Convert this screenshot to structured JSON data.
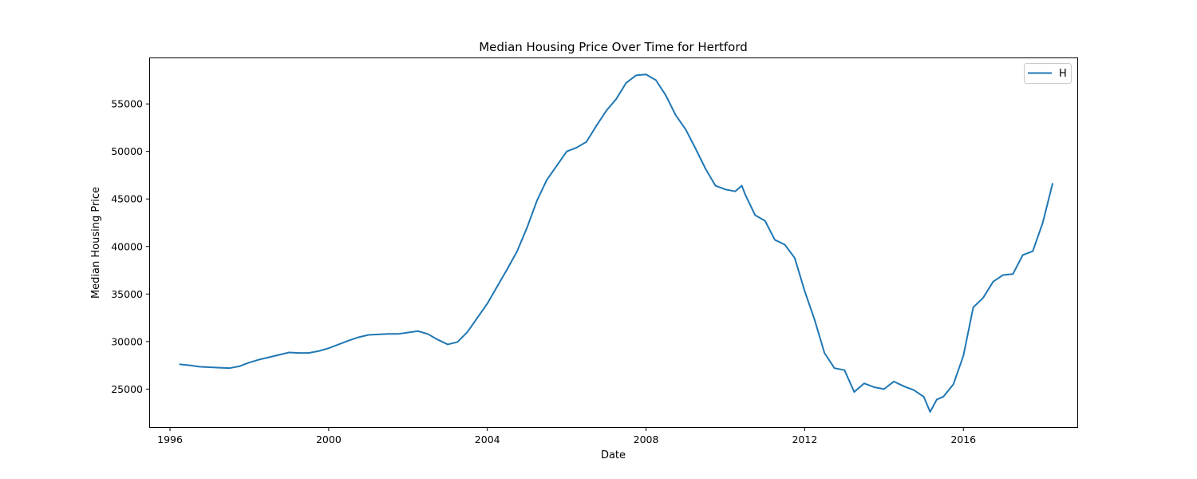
{
  "chart_data": {
    "type": "line",
    "title": "Median Housing Price Over Time for Hertford",
    "xlabel": "Date",
    "ylabel": "Median Housing Price",
    "xlim": [
      "1995-07-01",
      "2018-11-15"
    ],
    "ylim": [
      21000,
      59800
    ],
    "xticks": [
      {
        "label": "1996",
        "date": "1996-01-01"
      },
      {
        "label": "2000",
        "date": "2000-01-01"
      },
      {
        "label": "2004",
        "date": "2004-01-01"
      },
      {
        "label": "2008",
        "date": "2008-01-01"
      },
      {
        "label": "2012",
        "date": "2012-01-01"
      },
      {
        "label": "2016",
        "date": "2016-01-01"
      }
    ],
    "yticks": [
      25000,
      30000,
      35000,
      40000,
      45000,
      50000,
      55000
    ],
    "grid": false,
    "legend_position": "top-right",
    "series": [
      {
        "name": "H",
        "color": "#1f77b4",
        "x": [
          "1996-04-01",
          "1996-07-01",
          "1996-10-01",
          "1997-01-01",
          "1997-04-01",
          "1997-07-01",
          "1997-10-01",
          "1998-01-01",
          "1998-04-01",
          "1998-07-01",
          "1998-10-01",
          "1999-01-01",
          "1999-04-01",
          "1999-07-01",
          "1999-10-01",
          "2000-01-01",
          "2000-04-01",
          "2000-07-01",
          "2000-10-01",
          "2001-01-01",
          "2001-04-01",
          "2001-07-01",
          "2001-10-01",
          "2002-01-01",
          "2002-04-01",
          "2002-07-01",
          "2002-10-01",
          "2003-01-01",
          "2003-04-01",
          "2003-07-01",
          "2003-10-01",
          "2004-01-01",
          "2004-04-01",
          "2004-07-01",
          "2004-10-01",
          "2005-01-01",
          "2005-04-01",
          "2005-07-01",
          "2005-10-01",
          "2006-01-01",
          "2006-04-01",
          "2006-07-01",
          "2006-10-01",
          "2007-01-01",
          "2007-04-01",
          "2007-07-01",
          "2007-10-01",
          "2008-01-01",
          "2008-04-01",
          "2008-07-01",
          "2008-10-01",
          "2009-01-01",
          "2009-04-01",
          "2009-07-01",
          "2009-10-01",
          "2010-01-01",
          "2010-04-01",
          "2010-06-01",
          "2010-07-01",
          "2010-10-01",
          "2011-01-01",
          "2011-04-01",
          "2011-07-01",
          "2011-10-01",
          "2012-01-01",
          "2012-04-01",
          "2012-07-01",
          "2012-10-01",
          "2013-01-01",
          "2013-04-01",
          "2013-07-01",
          "2013-10-01",
          "2014-01-01",
          "2014-04-01",
          "2014-07-01",
          "2014-10-01",
          "2015-01-01",
          "2015-03-01",
          "2015-05-01",
          "2015-07-01",
          "2015-10-01",
          "2016-01-01",
          "2016-04-01",
          "2016-07-01",
          "2016-10-01",
          "2017-01-01",
          "2017-04-01",
          "2017-07-01",
          "2017-10-01",
          "2018-01-01",
          "2018-04-01"
        ],
        "y": [
          27600,
          27500,
          27350,
          27300,
          27250,
          27200,
          27400,
          27800,
          28100,
          28350,
          28600,
          28850,
          28800,
          28800,
          29000,
          29300,
          29700,
          30100,
          30450,
          30700,
          30750,
          30800,
          30800,
          30950,
          31100,
          30800,
          30200,
          29700,
          29950,
          31000,
          32500,
          34000,
          35800,
          37600,
          39500,
          42000,
          44800,
          47000,
          48500,
          50000,
          50400,
          51000,
          52700,
          54300,
          55500,
          57200,
          58000,
          58100,
          57500,
          55900,
          53800,
          52300,
          50300,
          48200,
          46400,
          46000,
          45800,
          46400,
          45500,
          43300,
          42700,
          40700,
          40200,
          38800,
          35300,
          32300,
          28800,
          27200,
          27000,
          24700,
          25600,
          25200,
          25000,
          25800,
          25300,
          24900,
          24200,
          22600,
          23900,
          24200,
          25500,
          28500,
          33600,
          34600,
          36300,
          37000,
          37100,
          39100,
          39500,
          42500,
          46600
        ]
      }
    ]
  }
}
